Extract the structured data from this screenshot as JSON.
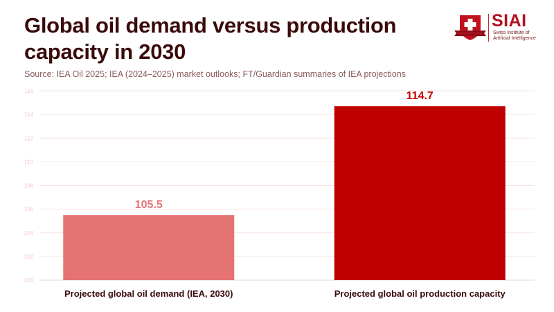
{
  "header": {
    "title": "Global oil demand versus production capacity in 2030",
    "subtitle": "Source: IEA Oil 2025; IEA (2024–2025) market outlooks; FT/Guardian summaries of IEA projections"
  },
  "logo": {
    "brand": "SIAI",
    "tagline_line1": "Swiss Institute of",
    "tagline_line2": "Artificial Intelligence",
    "icon": "swiss-shield-icon",
    "color": "#b3121f"
  },
  "chart_data": {
    "type": "bar",
    "title": "Global oil demand versus production capacity in 2030",
    "xlabel": "",
    "ylabel": "",
    "categories": [
      "Projected global oil demand (IEA, 2030)",
      "Projected global oil production capacity"
    ],
    "values": [
      105.5,
      114.7
    ],
    "value_labels": [
      "105.5",
      "114.7"
    ],
    "colors": [
      "#e57373",
      "#c00000"
    ],
    "ylim": [
      100,
      116
    ],
    "yticks": [
      100,
      102,
      104,
      106,
      108,
      110,
      112,
      114,
      116
    ],
    "grid": true,
    "legend": "none"
  }
}
